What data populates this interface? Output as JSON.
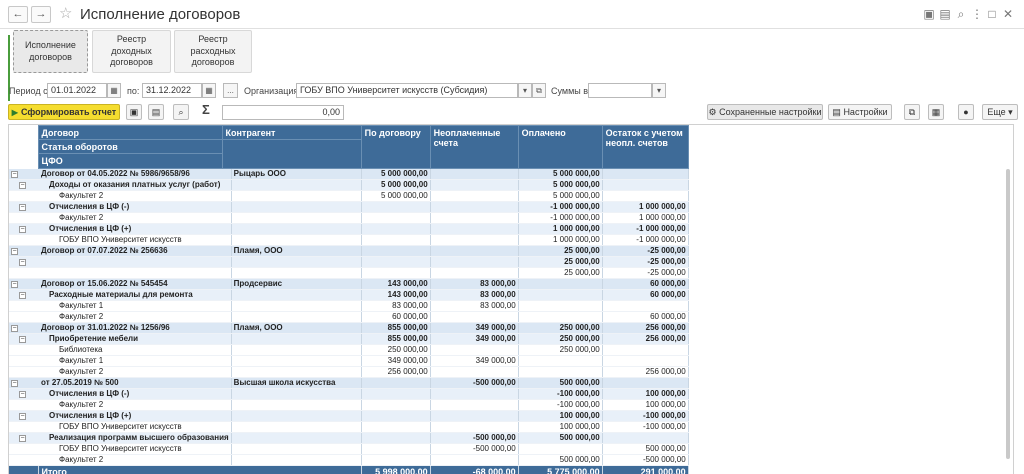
{
  "window": {
    "title": "Исполнение договоров",
    "back_icon": "arrow-left-icon",
    "forward_icon": "arrow-right-icon",
    "star_icon": "star-icon"
  },
  "tabs": [
    {
      "label": "Исполнение договоров",
      "active": true
    },
    {
      "label": "Реестр доходных договоров",
      "active": false
    },
    {
      "label": "Реестр расходных договоров",
      "active": false
    }
  ],
  "filters": {
    "period_label": "Период с:",
    "period_from": "01.01.2022",
    "to_label": "по:",
    "period_to": "31.12.2022",
    "ellipsis": "...",
    "org_label": "Организация:",
    "org_value": "ГОБУ ВПО Университет искусств (Субсидия)",
    "sums_label": "Суммы в:",
    "sums_value": ""
  },
  "toolbar": {
    "generate_label": "Сформировать отчет",
    "sigma": "Σ",
    "sum_value": "0,00",
    "saved_settings": "Сохраненные настройки",
    "settings": "Настройки",
    "more": "Еще"
  },
  "table": {
    "headers": {
      "contract": "Договор",
      "counterparty": "Контрагент",
      "article": "Статья оборотов",
      "cfo": "ЦФО",
      "by_contract": "По договору",
      "unpaid": "Неоплаченные счета",
      "paid": "Оплачено",
      "balance": "Остаток с учетом неопл. счетов"
    },
    "rows": [
      {
        "level": 0,
        "name": "Договор от 04.05.2022 № 5986/9658/96",
        "counterparty": "Рыцарь ООО",
        "by_contract": "5 000 000,00",
        "unpaid": "",
        "paid": "5 000 000,00",
        "balance": ""
      },
      {
        "level": 1,
        "name": "Доходы от оказания платных услуг (работ)",
        "counterparty": "",
        "by_contract": "5 000 000,00",
        "unpaid": "",
        "paid": "5 000 000,00",
        "balance": ""
      },
      {
        "level": 2,
        "name": "Факультет 2",
        "counterparty": "",
        "by_contract": "5 000 000,00",
        "unpaid": "",
        "paid": "5 000 000,00",
        "balance": ""
      },
      {
        "level": 1,
        "name": "Отчисления в ЦФ (-)",
        "counterparty": "",
        "by_contract": "",
        "unpaid": "",
        "paid": "-1 000 000,00",
        "balance": "1 000 000,00"
      },
      {
        "level": 2,
        "name": "Факультет 2",
        "counterparty": "",
        "by_contract": "",
        "unpaid": "",
        "paid": "-1 000 000,00",
        "balance": "1 000 000,00"
      },
      {
        "level": 1,
        "name": "Отчисления в ЦФ (+)",
        "counterparty": "",
        "by_contract": "",
        "unpaid": "",
        "paid": "1 000 000,00",
        "balance": "-1 000 000,00"
      },
      {
        "level": 2,
        "name": "ГОБУ ВПО Университет искусств",
        "counterparty": "",
        "by_contract": "",
        "unpaid": "",
        "paid": "1 000 000,00",
        "balance": "-1 000 000,00"
      },
      {
        "level": 0,
        "name": "Договор от 07.07.2022 № 256636",
        "counterparty": "Пламя, ООО",
        "by_contract": "",
        "unpaid": "",
        "paid": "25 000,00",
        "balance": "-25 000,00"
      },
      {
        "level": 1,
        "name": "",
        "counterparty": "",
        "by_contract": "",
        "unpaid": "",
        "paid": "25 000,00",
        "balance": "-25 000,00"
      },
      {
        "level": 2,
        "name": "",
        "counterparty": "",
        "by_contract": "",
        "unpaid": "",
        "paid": "25 000,00",
        "balance": "-25 000,00"
      },
      {
        "level": 0,
        "name": "Договор от 15.06.2022 № 545454",
        "counterparty": "Продсервис",
        "by_contract": "143 000,00",
        "unpaid": "83 000,00",
        "paid": "",
        "balance": "60 000,00"
      },
      {
        "level": 1,
        "name": "Расходные материалы для ремонта",
        "counterparty": "",
        "by_contract": "143 000,00",
        "unpaid": "83 000,00",
        "paid": "",
        "balance": "60 000,00"
      },
      {
        "level": 2,
        "name": "Факультет 1",
        "counterparty": "",
        "by_contract": "83 000,00",
        "unpaid": "83 000,00",
        "paid": "",
        "balance": ""
      },
      {
        "level": 2,
        "name": "Факультет 2",
        "counterparty": "",
        "by_contract": "60 000,00",
        "unpaid": "",
        "paid": "",
        "balance": "60 000,00"
      },
      {
        "level": 0,
        "name": "Договор от 31.01.2022 № 1256/96",
        "counterparty": "Пламя, ООО",
        "by_contract": "855 000,00",
        "unpaid": "349 000,00",
        "paid": "250 000,00",
        "balance": "256 000,00"
      },
      {
        "level": 1,
        "name": "Приобретение мебели",
        "counterparty": "",
        "by_contract": "855 000,00",
        "unpaid": "349 000,00",
        "paid": "250 000,00",
        "balance": "256 000,00"
      },
      {
        "level": 2,
        "name": "Библиотека",
        "counterparty": "",
        "by_contract": "250 000,00",
        "unpaid": "",
        "paid": "250 000,00",
        "balance": ""
      },
      {
        "level": 2,
        "name": "Факультет 1",
        "counterparty": "",
        "by_contract": "349 000,00",
        "unpaid": "349 000,00",
        "paid": "",
        "balance": ""
      },
      {
        "level": 2,
        "name": "Факультет 2",
        "counterparty": "",
        "by_contract": "256 000,00",
        "unpaid": "",
        "paid": "",
        "balance": "256 000,00"
      },
      {
        "level": 0,
        "name": "от 27.05.2019 № 500",
        "counterparty": "Высшая школа искусства",
        "by_contract": "",
        "unpaid": "-500 000,00",
        "paid": "500 000,00",
        "balance": ""
      },
      {
        "level": 1,
        "name": "Отчисления в ЦФ (-)",
        "counterparty": "",
        "by_contract": "",
        "unpaid": "",
        "paid": "-100 000,00",
        "balance": "100 000,00"
      },
      {
        "level": 2,
        "name": "Факультет 2",
        "counterparty": "",
        "by_contract": "",
        "unpaid": "",
        "paid": "-100 000,00",
        "balance": "100 000,00"
      },
      {
        "level": 1,
        "name": "Отчисления в ЦФ (+)",
        "counterparty": "",
        "by_contract": "",
        "unpaid": "",
        "paid": "100 000,00",
        "balance": "-100 000,00"
      },
      {
        "level": 2,
        "name": "ГОБУ ВПО Университет искусств",
        "counterparty": "",
        "by_contract": "",
        "unpaid": "",
        "paid": "100 000,00",
        "balance": "-100 000,00"
      },
      {
        "level": 1,
        "name": "Реализация программ высшего образования",
        "counterparty": "",
        "by_contract": "",
        "unpaid": "-500 000,00",
        "paid": "500 000,00",
        "balance": ""
      },
      {
        "level": 2,
        "name": "ГОБУ ВПО Университет искусств",
        "counterparty": "",
        "by_contract": "",
        "unpaid": "-500 000,00",
        "paid": "",
        "balance": "500 000,00"
      },
      {
        "level": 2,
        "name": "Факультет 2",
        "counterparty": "",
        "by_contract": "",
        "unpaid": "",
        "paid": "500 000,00",
        "balance": "-500 000,00"
      }
    ],
    "total": {
      "label": "Итого",
      "by_contract": "5 998 000,00",
      "unpaid": "-68 000,00",
      "paid": "5 775 000,00",
      "balance": "291 000,00"
    }
  }
}
